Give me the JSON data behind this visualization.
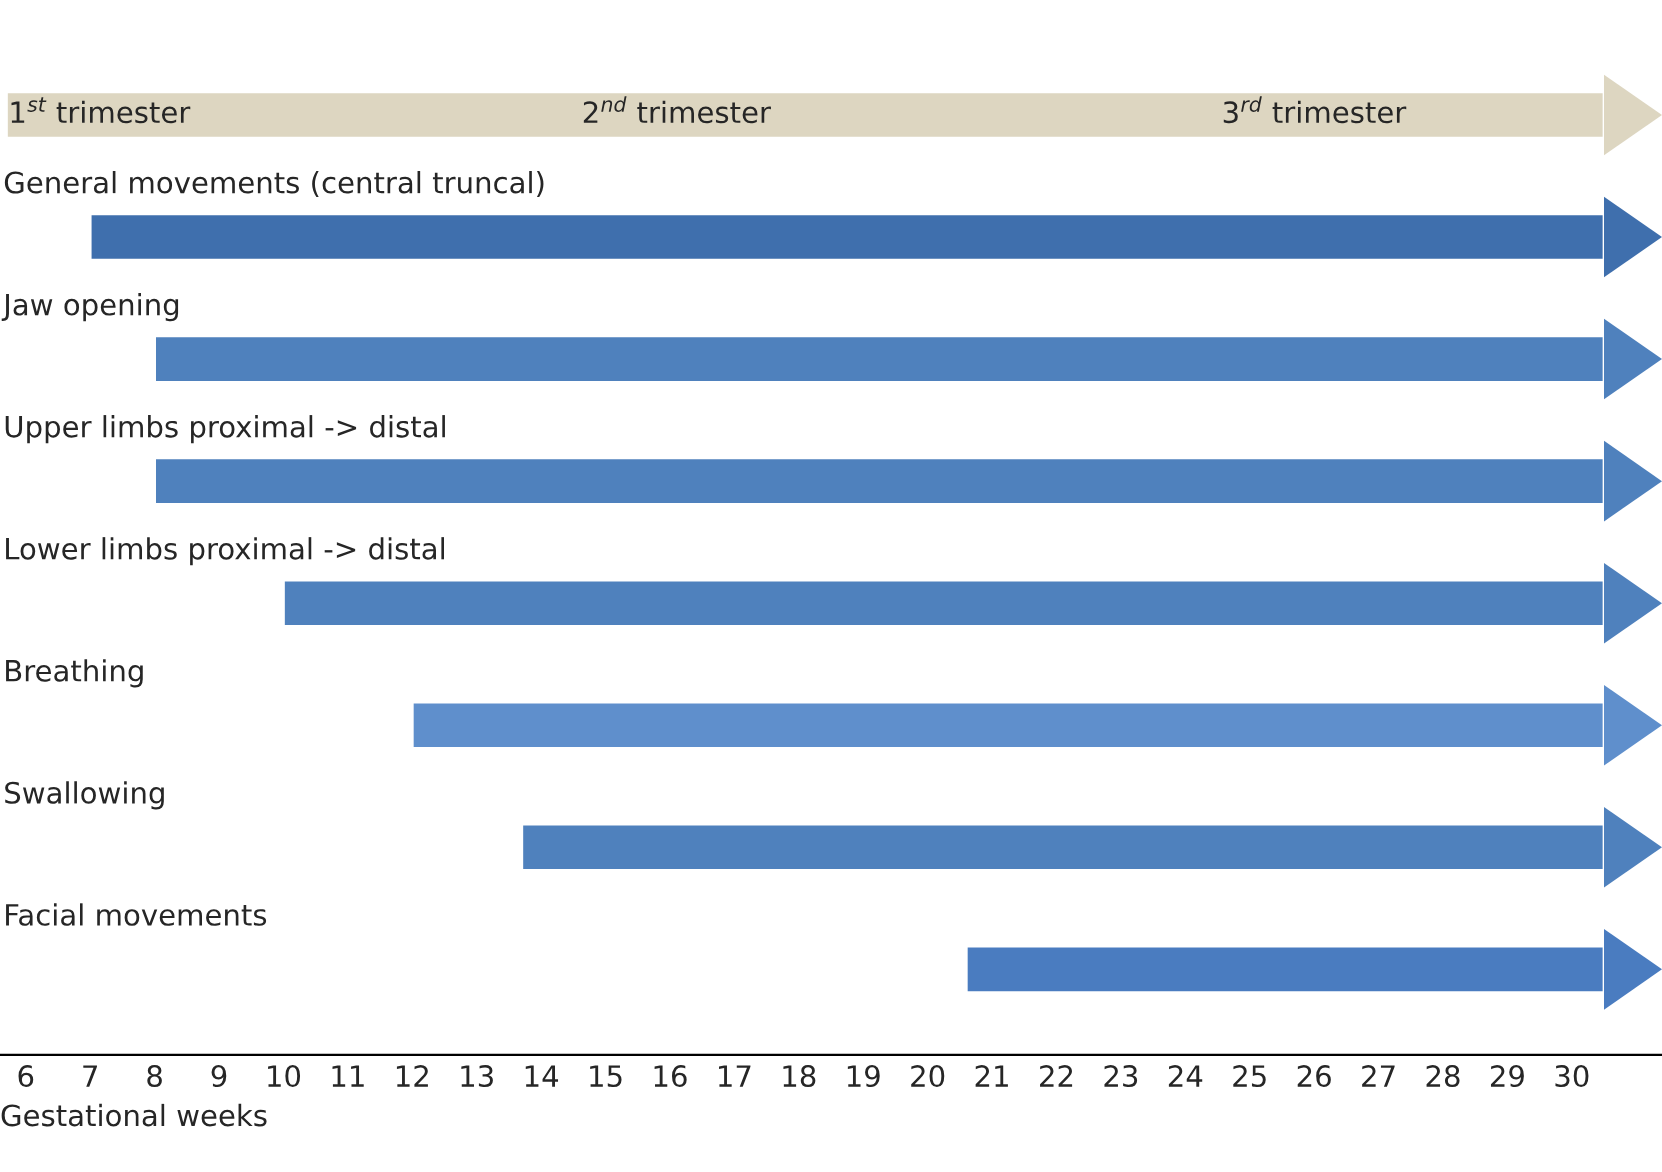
{
  "chart_data": {
    "type": "bar",
    "orientation": "horizontal",
    "xlabel": "Gestational weeks",
    "categories": [
      null,
      "General movements (central truncal)",
      "Jaw opening",
      "Upper limbs proximal -> distal",
      "Lower limbs proximal -> distal",
      "Breathing",
      "Swallowing",
      "Facial movements"
    ],
    "base": [
      5.7,
      7,
      8,
      8,
      10,
      12,
      13.7,
      20.6
    ],
    "values": [
      24.8,
      23.5,
      22.5,
      22.5,
      20.5,
      18.5,
      16.8,
      9.9
    ],
    "colors": [
      "#ddd6c1",
      "#3f6fad",
      "#4f81bd",
      "#4f81bd",
      "#4f81bd",
      "#5f8fcc",
      "#4f81bd",
      "#4a7cc0"
    ],
    "xlim": [
      5.6,
      31.4
    ],
    "xticks": [
      6,
      7,
      8,
      9,
      10,
      11,
      12,
      13,
      14,
      15,
      16,
      17,
      18,
      19,
      20,
      21,
      22,
      23,
      24,
      25,
      26,
      27,
      28,
      29,
      30
    ],
    "tick_labels": "x",
    "grid": false,
    "annotations": [
      "1$^{st}$ trimester",
      "2$^{nd}$ trimester",
      "3$^{rd}$ trimester"
    ]
  }
}
